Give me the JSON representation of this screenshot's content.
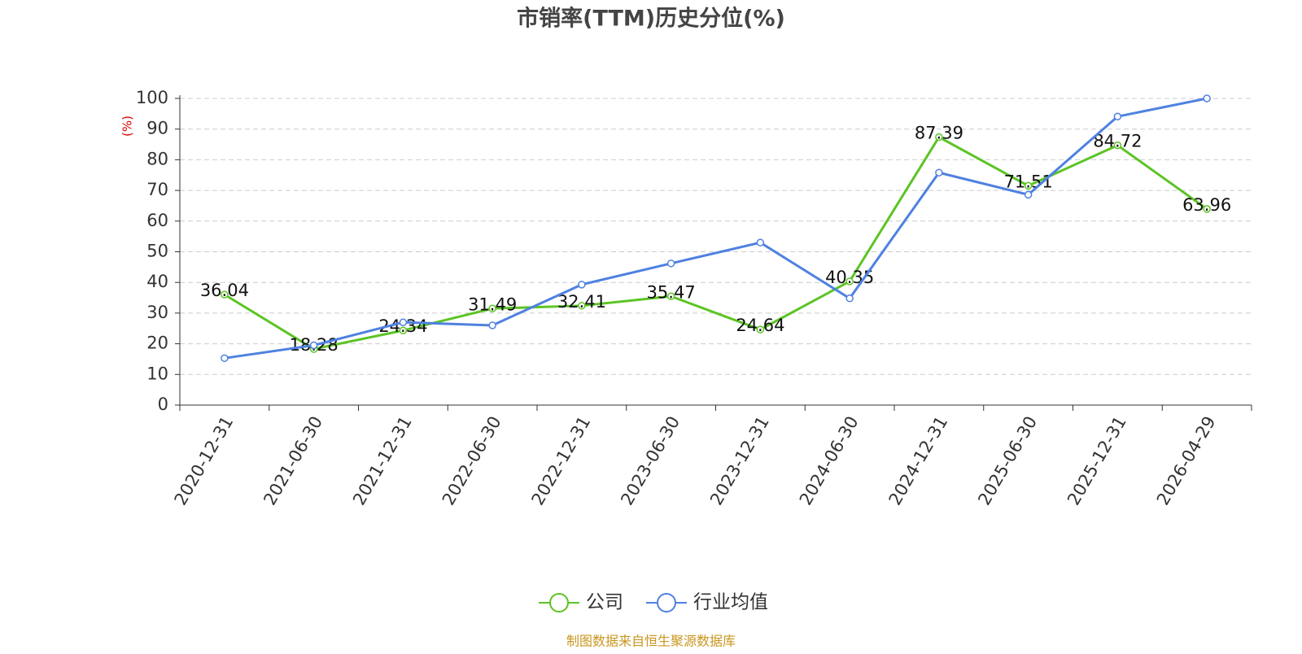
{
  "chart_data": {
    "type": "line",
    "title": "市销率(TTM)历史分位(%)",
    "y_label": "(%)",
    "categories": [
      "2020-12-31",
      "2021-06-30",
      "2021-12-31",
      "2022-06-30",
      "2022-12-31",
      "2023-06-30",
      "2023-12-31",
      "2024-06-30",
      "2024-12-31",
      "2025-06-30",
      "2025-12-31",
      "2026-04-29"
    ],
    "series": [
      {
        "name": "公司",
        "color": "#5cc424",
        "values": [
          36.04,
          18.28,
          24.34,
          31.49,
          32.41,
          35.47,
          24.64,
          40.35,
          87.39,
          71.51,
          84.72,
          63.96
        ],
        "data_labels": true
      },
      {
        "name": "行业均值",
        "color": "#4f81e0",
        "values": [
          15.3,
          19.5,
          27.0,
          26.0,
          39.3,
          46.2,
          53.0,
          34.8,
          75.8,
          68.6,
          94.1,
          100.0
        ],
        "data_labels": false
      }
    ],
    "ylim": [
      0,
      100
    ],
    "yticks": [
      0,
      10,
      20,
      30,
      40,
      50,
      60,
      70,
      80,
      90,
      100
    ],
    "grid": true,
    "legend": "bottom",
    "source": "制图数据来自恒生聚源数据库"
  }
}
